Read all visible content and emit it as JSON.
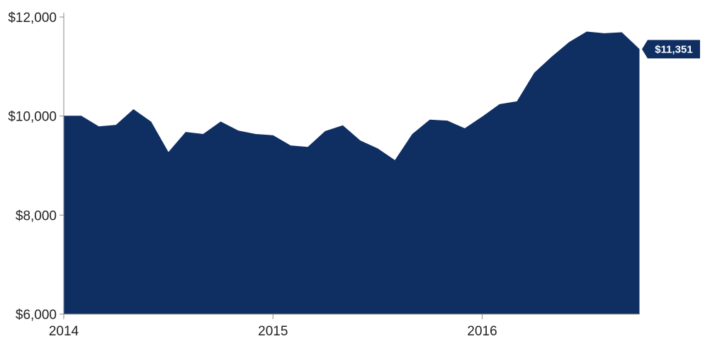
{
  "chart_data": {
    "type": "area",
    "color": "#0f2f63",
    "x": [
      "2014-01",
      "2014-02",
      "2014-03",
      "2014-04",
      "2014-05",
      "2014-06",
      "2014-07",
      "2014-08",
      "2014-09",
      "2014-10",
      "2014-11",
      "2014-12",
      "2015-01",
      "2015-02",
      "2015-03",
      "2015-04",
      "2015-05",
      "2015-06",
      "2015-07",
      "2015-08",
      "2015-09",
      "2015-10",
      "2015-11",
      "2015-12",
      "2016-01",
      "2016-02",
      "2016-03",
      "2016-04",
      "2016-05",
      "2016-06",
      "2016-07",
      "2016-08",
      "2016-09",
      "2016-10"
    ],
    "values": [
      10000,
      10000,
      9785,
      9815,
      10130,
      9880,
      9260,
      9670,
      9630,
      9880,
      9700,
      9630,
      9605,
      9400,
      9370,
      9690,
      9805,
      9500,
      9340,
      9100,
      9630,
      9920,
      9900,
      9745,
      9980,
      10235,
      10290,
      10870,
      11195,
      11490,
      11700,
      11665,
      11685,
      11351
    ],
    "ylim": [
      6000,
      12000
    ],
    "y_ticks": [
      6000,
      8000,
      10000,
      12000
    ],
    "y_tick_labels": [
      "$6,000",
      "$8,000",
      "$10,000",
      "$12,000"
    ],
    "x_ticks": [
      "2014-01",
      "2015-01",
      "2016-01"
    ],
    "x_tick_labels": [
      "2014",
      "2015",
      "2016"
    ],
    "last_value_label": "$11,351",
    "title": "",
    "xlabel": "",
    "ylabel": "",
    "grid": false,
    "legend": "none"
  }
}
